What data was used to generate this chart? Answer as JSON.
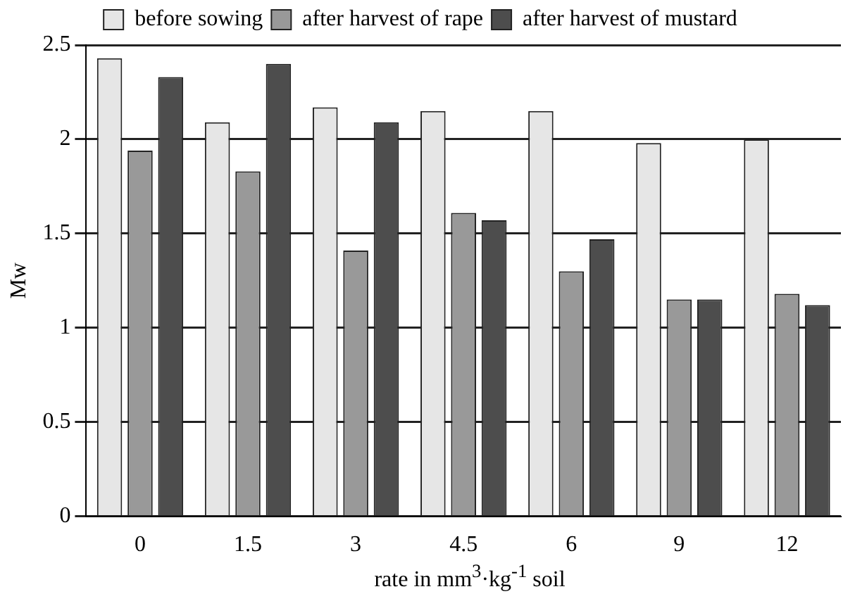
{
  "chart_data": {
    "type": "bar",
    "xlabel": "rate in mm$^{3}$·kg$^{-1}$ soil",
    "ylabel": "Mw",
    "categories": [
      "0",
      "1.5",
      "3",
      "4.5",
      "6",
      "9",
      "12"
    ],
    "series": [
      {
        "name": "before sowing",
        "color": "#e6e6e6",
        "values": [
          2.43,
          2.09,
          2.17,
          2.15,
          2.15,
          1.98,
          2.0
        ]
      },
      {
        "name": "after harvest of rape",
        "color": "#999999",
        "values": [
          1.94,
          1.83,
          1.41,
          1.61,
          1.3,
          1.15,
          1.18
        ]
      },
      {
        "name": "after harvest of mustard",
        "color": "#4d4d4d",
        "values": [
          2.33,
          2.4,
          2.09,
          1.57,
          1.47,
          1.15,
          1.12
        ]
      }
    ],
    "ylim": [
      0,
      2.5
    ],
    "yticks": [
      0,
      0.5,
      1,
      1.5,
      2,
      2.5
    ],
    "grid": "y",
    "legend": "top"
  }
}
